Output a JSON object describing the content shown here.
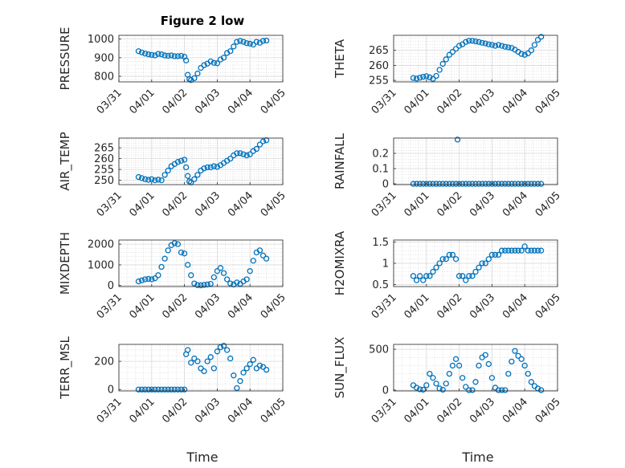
{
  "figure": {
    "title": "Figure 2 low",
    "xlabel": "Time"
  },
  "colors": {
    "marker": "#0072BD",
    "grid": "#c8c8c8",
    "axis": "#262626"
  },
  "chart_data": [
    {
      "type": "scatter",
      "id": "pressure",
      "ylabel": "PRESSURE",
      "title": "Figure 2 low",
      "xlim": [
        "03/31",
        "04/05"
      ],
      "ylim": [
        770,
        1020
      ],
      "yticks": [
        800,
        900,
        1000
      ],
      "xticks": [
        "03/31",
        "04/01",
        "04/02",
        "04/03",
        "04/04",
        "04/05"
      ],
      "grid": true,
      "x_days_from_0331": [
        0.6,
        0.7,
        0.8,
        0.9,
        1.0,
        1.1,
        1.2,
        1.3,
        1.4,
        1.5,
        1.6,
        1.7,
        1.8,
        1.9,
        2.0,
        2.05,
        2.1,
        2.15,
        2.2,
        2.3,
        2.4,
        2.5,
        2.6,
        2.7,
        2.8,
        2.9,
        3.0,
        3.1,
        3.2,
        3.3,
        3.4,
        3.5,
        3.6,
        3.7,
        3.8,
        3.9,
        4.0,
        4.1,
        4.2,
        4.3,
        4.4,
        4.5
      ],
      "y": [
        935,
        928,
        922,
        918,
        915,
        912,
        920,
        918,
        912,
        910,
        912,
        908,
        908,
        910,
        905,
        885,
        808,
        785,
        780,
        790,
        815,
        845,
        860,
        868,
        880,
        872,
        870,
        890,
        900,
        925,
        935,
        960,
        985,
        990,
        985,
        978,
        975,
        970,
        985,
        980,
        990,
        992
      ]
    },
    {
      "type": "scatter",
      "id": "theta",
      "ylabel": "THETA",
      "xlim": [
        "03/31",
        "04/05"
      ],
      "ylim": [
        254.5,
        270
      ],
      "yticks": [
        255,
        260,
        265
      ],
      "xticks": [
        "03/31",
        "04/01",
        "04/02",
        "04/03",
        "04/04",
        "04/05"
      ],
      "grid": true,
      "x_days_from_0331": [
        0.6,
        0.7,
        0.8,
        0.9,
        1.0,
        1.1,
        1.2,
        1.3,
        1.4,
        1.5,
        1.6,
        1.7,
        1.8,
        1.9,
        2.0,
        2.1,
        2.2,
        2.3,
        2.4,
        2.5,
        2.6,
        2.7,
        2.8,
        2.9,
        3.0,
        3.1,
        3.2,
        3.3,
        3.4,
        3.5,
        3.6,
        3.7,
        3.8,
        3.9,
        4.0,
        4.1,
        4.2,
        4.3,
        4.4,
        4.5
      ],
      "y": [
        255.8,
        255.6,
        255.9,
        256.2,
        256.4,
        256.0,
        255.5,
        256.5,
        258.5,
        260.5,
        262.0,
        263.5,
        264.5,
        265.5,
        266.5,
        267.0,
        267.8,
        268.2,
        268.2,
        268.0,
        267.8,
        267.5,
        267.3,
        267.0,
        266.8,
        266.5,
        266.8,
        266.5,
        266.2,
        266.0,
        265.8,
        265.2,
        264.5,
        263.8,
        263.5,
        264.0,
        265.0,
        266.8,
        268.5,
        269.5
      ]
    },
    {
      "type": "scatter",
      "id": "air_temp",
      "ylabel": "AIR_TEMP",
      "xlim": [
        "03/31",
        "04/05"
      ],
      "ylim": [
        248,
        269.5
      ],
      "yticks": [
        250,
        255,
        260,
        265
      ],
      "xticks": [
        "03/31",
        "04/01",
        "04/02",
        "04/03",
        "04/04",
        "04/05"
      ],
      "grid": true,
      "x_days_from_0331": [
        0.6,
        0.7,
        0.8,
        0.9,
        1.0,
        1.1,
        1.2,
        1.3,
        1.4,
        1.5,
        1.6,
        1.7,
        1.8,
        1.9,
        2.0,
        2.05,
        2.1,
        2.15,
        2.2,
        2.3,
        2.4,
        2.5,
        2.6,
        2.7,
        2.8,
        2.9,
        3.0,
        3.1,
        3.2,
        3.3,
        3.4,
        3.5,
        3.6,
        3.7,
        3.8,
        3.9,
        4.0,
        4.1,
        4.2,
        4.3,
        4.4,
        4.5
      ],
      "y": [
        251.5,
        251.0,
        250.5,
        250.2,
        250.5,
        250.0,
        250.3,
        250.0,
        252.5,
        254.5,
        256.5,
        257.5,
        258.5,
        259.0,
        259.5,
        256.0,
        252.0,
        249.5,
        249.0,
        250.5,
        252.5,
        254.5,
        255.5,
        256.0,
        256.0,
        256.5,
        256.2,
        257.0,
        258.0,
        259.0,
        260.0,
        261.5,
        262.5,
        262.5,
        262.0,
        261.5,
        262.0,
        263.5,
        264.5,
        266.5,
        268.0,
        268.5
      ]
    },
    {
      "type": "scatter",
      "id": "rainfall",
      "ylabel": "RAINFALL",
      "xlim": [
        "03/31",
        "04/05"
      ],
      "ylim": [
        -0.005,
        0.3
      ],
      "yticks": [
        0,
        0.1,
        0.2
      ],
      "xticks": [
        "03/31",
        "04/01",
        "04/02",
        "04/03",
        "04/04",
        "04/05"
      ],
      "grid": true,
      "x_days_from_0331": [
        0.6,
        0.7,
        0.8,
        0.9,
        1.0,
        1.1,
        1.2,
        1.3,
        1.4,
        1.5,
        1.6,
        1.7,
        1.8,
        1.9,
        2.0,
        2.1,
        2.2,
        2.3,
        2.4,
        2.5,
        2.6,
        2.7,
        2.8,
        2.9,
        3.0,
        3.1,
        3.2,
        3.3,
        3.4,
        3.5,
        3.6,
        3.7,
        3.8,
        3.9,
        4.0,
        4.1,
        4.2,
        4.3,
        4.4,
        4.5,
        1.95
      ],
      "y": [
        0,
        0,
        0,
        0,
        0,
        0,
        0,
        0,
        0,
        0,
        0,
        0,
        0,
        0,
        0,
        0,
        0,
        0,
        0,
        0,
        0,
        0,
        0,
        0,
        0,
        0,
        0,
        0,
        0,
        0,
        0,
        0,
        0,
        0,
        0,
        0,
        0,
        0,
        0,
        0,
        0.29
      ]
    },
    {
      "type": "scatter",
      "id": "mixdepth",
      "ylabel": "MIXDEPTH",
      "xlim": [
        "03/31",
        "04/05"
      ],
      "ylim": [
        -50,
        2200
      ],
      "yticks": [
        0,
        1000,
        2000
      ],
      "xticks": [
        "03/31",
        "04/01",
        "04/02",
        "04/03",
        "04/04",
        "04/05"
      ],
      "grid": true,
      "x_days_from_0331": [
        0.6,
        0.7,
        0.8,
        0.9,
        1.0,
        1.1,
        1.2,
        1.3,
        1.4,
        1.5,
        1.6,
        1.7,
        1.8,
        1.9,
        2.0,
        2.1,
        2.2,
        2.3,
        2.4,
        2.5,
        2.6,
        2.7,
        2.8,
        2.9,
        3.0,
        3.1,
        3.2,
        3.3,
        3.4,
        3.5,
        3.6,
        3.7,
        3.8,
        3.9,
        4.0,
        4.1,
        4.2,
        4.3,
        4.4,
        4.5
      ],
      "y": [
        200,
        250,
        300,
        320,
        300,
        350,
        500,
        900,
        1300,
        1700,
        1950,
        2050,
        2000,
        1600,
        1550,
        1000,
        500,
        100,
        20,
        10,
        30,
        50,
        80,
        400,
        700,
        850,
        600,
        300,
        100,
        50,
        150,
        80,
        200,
        300,
        700,
        1200,
        1600,
        1700,
        1450,
        1300
      ]
    },
    {
      "type": "scatter",
      "id": "h2omixra",
      "ylabel": "H2OMIXRA",
      "xlim": [
        "03/31",
        "04/05"
      ],
      "ylim": [
        0.45,
        1.55
      ],
      "yticks": [
        0.5,
        1,
        1.5
      ],
      "xticks": [
        "03/31",
        "04/01",
        "04/02",
        "04/03",
        "04/04",
        "04/05"
      ],
      "grid": true,
      "x_days_from_0331": [
        0.6,
        0.7,
        0.8,
        0.9,
        1.0,
        1.1,
        1.2,
        1.3,
        1.4,
        1.5,
        1.6,
        1.7,
        1.8,
        1.9,
        2.0,
        2.1,
        2.2,
        2.3,
        2.4,
        2.5,
        2.6,
        2.7,
        2.8,
        2.9,
        3.0,
        3.1,
        3.2,
        3.3,
        3.4,
        3.5,
        3.6,
        3.7,
        3.8,
        3.9,
        4.0,
        4.1,
        4.2,
        4.3,
        4.4,
        4.5
      ],
      "y": [
        0.7,
        0.6,
        0.7,
        0.6,
        0.7,
        0.7,
        0.8,
        0.9,
        1.0,
        1.1,
        1.1,
        1.2,
        1.2,
        1.1,
        0.7,
        0.7,
        0.6,
        0.7,
        0.7,
        0.8,
        0.9,
        1.0,
        1.0,
        1.1,
        1.2,
        1.2,
        1.2,
        1.3,
        1.3,
        1.3,
        1.3,
        1.3,
        1.3,
        1.3,
        1.4,
        1.3,
        1.3,
        1.3,
        1.3,
        1.3
      ]
    },
    {
      "type": "scatter",
      "id": "terr_msl",
      "ylabel": "TERR_MSL",
      "xlim": [
        "03/31",
        "04/05"
      ],
      "ylim": [
        -10,
        320
      ],
      "yticks": [
        0,
        200
      ],
      "xticks": [
        "03/31",
        "04/01",
        "04/02",
        "04/03",
        "04/04",
        "04/05"
      ],
      "grid": true,
      "x_days_from_0331": [
        0.6,
        0.7,
        0.8,
        0.9,
        1.0,
        1.1,
        1.2,
        1.3,
        1.4,
        1.5,
        1.6,
        1.7,
        1.8,
        1.9,
        2.0,
        2.05,
        2.1,
        2.2,
        2.3,
        2.4,
        2.5,
        2.6,
        2.7,
        2.8,
        2.9,
        3.0,
        3.1,
        3.2,
        3.3,
        3.4,
        3.5,
        3.6,
        3.7,
        3.8,
        3.9,
        4.0,
        4.1,
        4.2,
        4.3,
        4.4,
        4.5
      ],
      "y": [
        0,
        0,
        0,
        0,
        0,
        0,
        0,
        0,
        0,
        0,
        0,
        0,
        0,
        0,
        0,
        250,
        280,
        190,
        220,
        200,
        150,
        130,
        200,
        230,
        150,
        270,
        300,
        310,
        280,
        220,
        100,
        10,
        60,
        120,
        150,
        180,
        210,
        150,
        170,
        160,
        140
      ]
    },
    {
      "type": "scatter",
      "id": "sun_flux",
      "ylabel": "SUN_FLUX",
      "xlim": [
        "03/31",
        "04/05"
      ],
      "ylim": [
        -10,
        560
      ],
      "yticks": [
        0,
        500
      ],
      "xticks": [
        "03/31",
        "04/01",
        "04/02",
        "04/03",
        "04/04",
        "04/05"
      ],
      "grid": true,
      "x_days_from_0331": [
        0.6,
        0.7,
        0.8,
        0.9,
        1.0,
        1.1,
        1.2,
        1.3,
        1.4,
        1.5,
        1.6,
        1.7,
        1.8,
        1.9,
        2.0,
        2.1,
        2.2,
        2.3,
        2.4,
        2.5,
        2.6,
        2.7,
        2.8,
        2.9,
        3.0,
        3.1,
        3.2,
        3.3,
        3.4,
        3.5,
        3.6,
        3.7,
        3.8,
        3.9,
        4.0,
        4.1,
        4.2,
        4.3,
        4.4,
        4.5
      ],
      "y": [
        60,
        30,
        10,
        5,
        60,
        200,
        150,
        80,
        20,
        5,
        80,
        200,
        300,
        380,
        300,
        150,
        40,
        0,
        0,
        100,
        300,
        400,
        430,
        320,
        150,
        30,
        0,
        0,
        0,
        200,
        350,
        480,
        420,
        380,
        300,
        200,
        100,
        50,
        20,
        0
      ]
    }
  ]
}
